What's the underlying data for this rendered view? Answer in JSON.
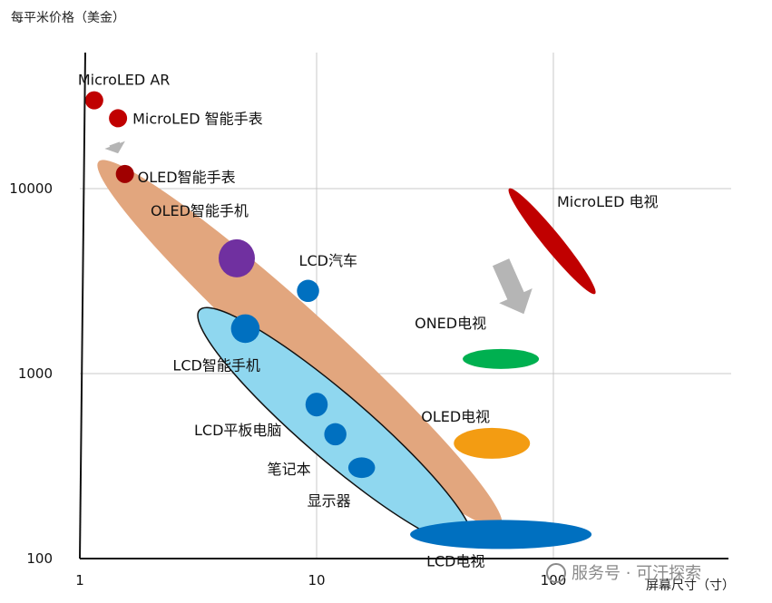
{
  "chart_data": {
    "type": "scatter",
    "title": "",
    "ylabel": "每平米价格（美金）",
    "xlabel": "屏幕尺寸（寸）",
    "x_scale": "log",
    "y_scale": "log",
    "xlim": [
      1,
      200
    ],
    "ylim": [
      100,
      40000
    ],
    "x_ticks": [
      "1",
      "10",
      "100"
    ],
    "y_ticks": [
      "100",
      "1000",
      "10000"
    ],
    "grid": true,
    "bands": [
      {
        "name": "OLED",
        "from": {
          "x": 1.2,
          "y": 14000
        },
        "to": {
          "x": 60,
          "y": 150
        },
        "color": "#e2a67e"
      },
      {
        "name": "LCD",
        "from": {
          "x": 3.2,
          "y": 2200
        },
        "to": {
          "x": 45,
          "y": 120
        },
        "color": "#8fd7ef"
      },
      {
        "name": "MicroLED 电视",
        "from": {
          "x": 65,
          "y": 10000
        },
        "to": {
          "x": 150,
          "y": 2700
        },
        "color": "#c00000"
      }
    ],
    "points": [
      {
        "label": "MicroLED AR",
        "x": 1.15,
        "y": 30000,
        "color": "#c00000",
        "size": 1
      },
      {
        "label": "MicroLED 智能手表",
        "x": 1.45,
        "y": 24000,
        "color": "#c00000",
        "size": 1
      },
      {
        "label": "OLED智能手表",
        "x": 1.55,
        "y": 12000,
        "color": "#a00000",
        "size": 1
      },
      {
        "label": "OLED智能手机",
        "x": 4.6,
        "y": 4200,
        "color": "#7030a0",
        "size": 4
      },
      {
        "label": "LCD汽车",
        "x": 9.2,
        "y": 2800,
        "color": "#0070c0",
        "size": 1.5
      },
      {
        "label": "LCD智能手机",
        "x": 5,
        "y": 1750,
        "color": "#0070c0",
        "size": 2.5
      },
      {
        "label": "LCD平板电脑",
        "x": 10,
        "y": 680,
        "color": "#0070c0",
        "size": 1.5
      },
      {
        "label": "笔记本",
        "x": 12,
        "y": 470,
        "color": "#0070c0",
        "size": 1.5
      },
      {
        "label": "显示器",
        "x": 15.5,
        "y": 310,
        "color": "#0070c0",
        "size": 1.8
      },
      {
        "label": "ONED电视",
        "x": 60,
        "y": 1200,
        "color": "#00b050",
        "size": 1.5
      },
      {
        "label": "OLED电视",
        "x": 55,
        "y": 420,
        "color": "#f39c12",
        "size": 2
      },
      {
        "label": "LCD电视",
        "x": 60,
        "y": 135,
        "color": "#0070c0",
        "size": 3.5
      }
    ],
    "arrows": [
      {
        "from": {
          "x": 1.4,
          "y": 17500
        },
        "to": {
          "x": 1.45,
          "y": 15500
        }
      },
      {
        "from": {
          "x": 60,
          "y": 4000
        },
        "to": {
          "x": 75,
          "y": 2100
        }
      }
    ]
  },
  "watermark": "服务号 · 可汗探索"
}
